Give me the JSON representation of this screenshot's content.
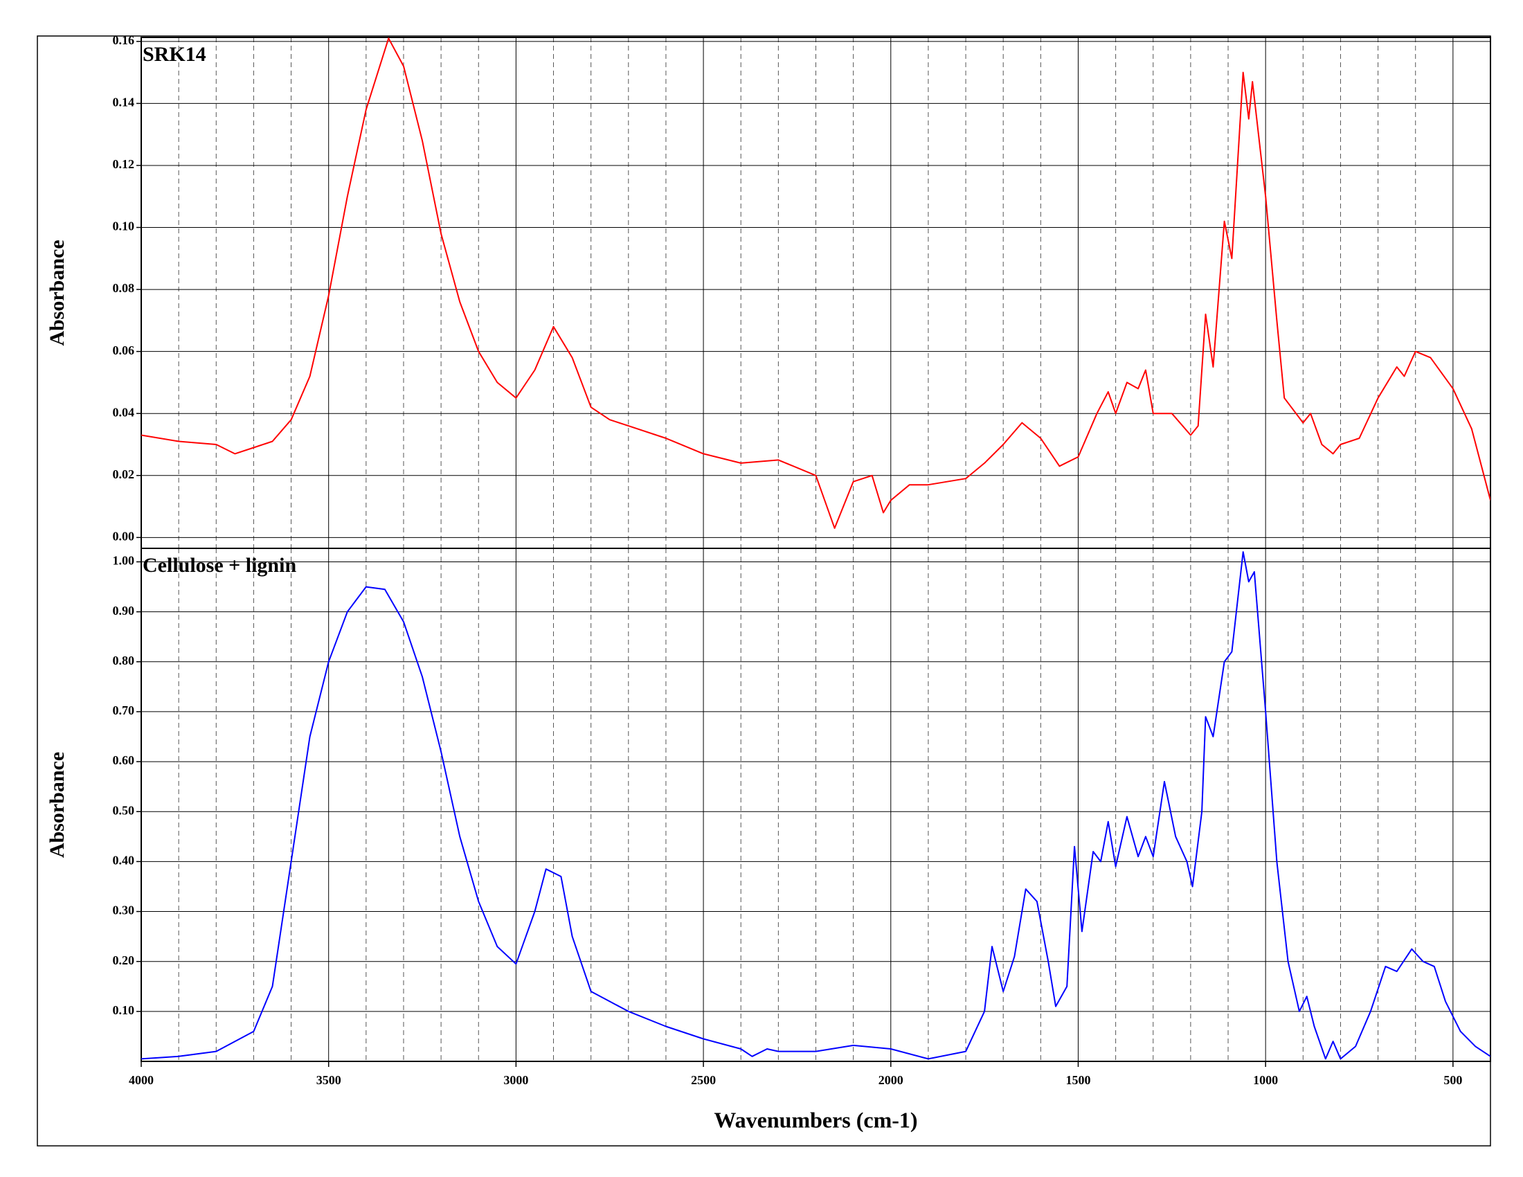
{
  "chart_data": [
    {
      "type": "line",
      "title": "SRK14",
      "ylabel": "Absorbance",
      "color": "#ff0000",
      "grid": true,
      "xlim": [
        4000,
        400
      ],
      "xticks": [
        4000,
        3500,
        3000,
        2500,
        2000,
        1500,
        1000,
        500
      ],
      "xminor_ticks": [
        3900,
        3800,
        3700,
        3600,
        3400,
        3300,
        3200,
        3100,
        2900,
        2800,
        2700,
        2600,
        2400,
        2300,
        2200,
        2100,
        1900,
        1800,
        1700,
        1600,
        1400,
        1300,
        1200,
        1100,
        900,
        800,
        700,
        600
      ],
      "ylim": [
        -0.0035,
        0.1613
      ],
      "yticks": [
        {
          "value": 0,
          "label": "0.00"
        },
        {
          "value": 0.02,
          "label": "0.02"
        },
        {
          "value": 0.04,
          "label": "0.04"
        },
        {
          "value": 0.06,
          "label": "0.06"
        },
        {
          "value": 0.08,
          "label": "0.08"
        },
        {
          "value": 0.1,
          "label": "0.10"
        },
        {
          "value": 0.12,
          "label": "0.12"
        },
        {
          "value": 0.14,
          "label": "0.14"
        },
        {
          "value": 0.16,
          "label": "0.16"
        }
      ],
      "x": [
        4000,
        3900,
        3800,
        3750,
        3700,
        3650,
        3600,
        3550,
        3500,
        3450,
        3400,
        3340,
        3300,
        3250,
        3200,
        3150,
        3100,
        3050,
        3000,
        2950,
        2900,
        2850,
        2800,
        2750,
        2700,
        2600,
        2500,
        2400,
        2300,
        2200,
        2150,
        2100,
        2050,
        2020,
        2000,
        1950,
        1900,
        1800,
        1750,
        1700,
        1650,
        1600,
        1550,
        1500,
        1450,
        1420,
        1400,
        1370,
        1340,
        1320,
        1300,
        1250,
        1200,
        1180,
        1160,
        1140,
        1110,
        1090,
        1060,
        1045,
        1035,
        1000,
        970,
        950,
        900,
        880,
        850,
        820,
        800,
        750,
        700,
        650,
        630,
        600,
        560,
        500,
        450,
        400
      ],
      "values": [
        0.033,
        0.031,
        0.03,
        0.027,
        0.029,
        0.031,
        0.038,
        0.052,
        0.078,
        0.11,
        0.138,
        0.161,
        0.152,
        0.128,
        0.098,
        0.076,
        0.06,
        0.05,
        0.045,
        0.054,
        0.068,
        0.058,
        0.042,
        0.038,
        0.036,
        0.032,
        0.027,
        0.024,
        0.025,
        0.02,
        0.003,
        0.018,
        0.02,
        0.008,
        0.012,
        0.017,
        0.017,
        0.019,
        0.024,
        0.03,
        0.037,
        0.032,
        0.023,
        0.026,
        0.04,
        0.047,
        0.04,
        0.05,
        0.048,
        0.054,
        0.04,
        0.04,
        0.033,
        0.036,
        0.072,
        0.055,
        0.102,
        0.09,
        0.15,
        0.135,
        0.147,
        0.11,
        0.07,
        0.045,
        0.037,
        0.04,
        0.03,
        0.027,
        0.03,
        0.032,
        0.045,
        0.055,
        0.052,
        0.06,
        0.058,
        0.048,
        0.035,
        0.012
      ]
    },
    {
      "type": "line",
      "title": "Cellulose + lignin",
      "ylabel": "Absorbance",
      "xlabel": "Wavenumbers (cm-1)",
      "color": "#0000ff",
      "grid": true,
      "xlim": [
        4000,
        400
      ],
      "xticks": [
        4000,
        3500,
        3000,
        2500,
        2000,
        1500,
        1000,
        500
      ],
      "xminor_ticks": [
        3900,
        3800,
        3700,
        3600,
        3400,
        3300,
        3200,
        3100,
        2900,
        2800,
        2700,
        2600,
        2400,
        2300,
        2200,
        2100,
        1900,
        1800,
        1700,
        1600,
        1400,
        1300,
        1200,
        1100,
        900,
        800,
        700,
        600
      ],
      "ylim": [
        0,
        1.027
      ],
      "yticks": [
        {
          "value": 0.1,
          "label": "0.10"
        },
        {
          "value": 0.2,
          "label": "0.20"
        },
        {
          "value": 0.3,
          "label": "0.30"
        },
        {
          "value": 0.4,
          "label": "0.40"
        },
        {
          "value": 0.5,
          "label": "0.50"
        },
        {
          "value": 0.6,
          "label": "0.60"
        },
        {
          "value": 0.7,
          "label": "0.70"
        },
        {
          "value": 0.8,
          "label": "0.80"
        },
        {
          "value": 0.9,
          "label": "0.90"
        },
        {
          "value": 1,
          "label": "1.00"
        }
      ],
      "x": [
        4000,
        3900,
        3800,
        3700,
        3650,
        3600,
        3550,
        3500,
        3450,
        3400,
        3350,
        3300,
        3250,
        3200,
        3150,
        3100,
        3050,
        3000,
        2950,
        2920,
        2880,
        2850,
        2800,
        2750,
        2700,
        2600,
        2500,
        2400,
        2370,
        2330,
        2300,
        2200,
        2100,
        2000,
        1900,
        1800,
        1750,
        1730,
        1700,
        1670,
        1640,
        1610,
        1580,
        1560,
        1530,
        1510,
        1490,
        1460,
        1440,
        1420,
        1400,
        1370,
        1340,
        1320,
        1300,
        1270,
        1240,
        1210,
        1195,
        1170,
        1160,
        1140,
        1110,
        1090,
        1060,
        1045,
        1030,
        1000,
        970,
        940,
        910,
        890,
        870,
        840,
        820,
        800,
        760,
        720,
        680,
        650,
        610,
        580,
        550,
        520,
        480,
        440,
        400
      ],
      "values": [
        0.005,
        0.01,
        0.02,
        0.06,
        0.15,
        0.4,
        0.65,
        0.8,
        0.9,
        0.95,
        0.945,
        0.88,
        0.77,
        0.62,
        0.45,
        0.32,
        0.23,
        0.195,
        0.3,
        0.385,
        0.37,
        0.25,
        0.14,
        0.12,
        0.1,
        0.07,
        0.045,
        0.025,
        0.01,
        0.025,
        0.02,
        0.02,
        0.032,
        0.025,
        0.005,
        0.02,
        0.1,
        0.23,
        0.14,
        0.21,
        0.345,
        0.32,
        0.2,
        0.11,
        0.15,
        0.43,
        0.26,
        0.42,
        0.4,
        0.48,
        0.39,
        0.49,
        0.41,
        0.45,
        0.41,
        0.56,
        0.45,
        0.4,
        0.35,
        0.5,
        0.69,
        0.65,
        0.8,
        0.82,
        1.02,
        0.96,
        0.98,
        0.7,
        0.4,
        0.2,
        0.1,
        0.13,
        0.07,
        0.005,
        0.04,
        0.005,
        0.03,
        0.1,
        0.19,
        0.18,
        0.225,
        0.2,
        0.19,
        0.12,
        0.06,
        0.03,
        0.01
      ]
    }
  ]
}
